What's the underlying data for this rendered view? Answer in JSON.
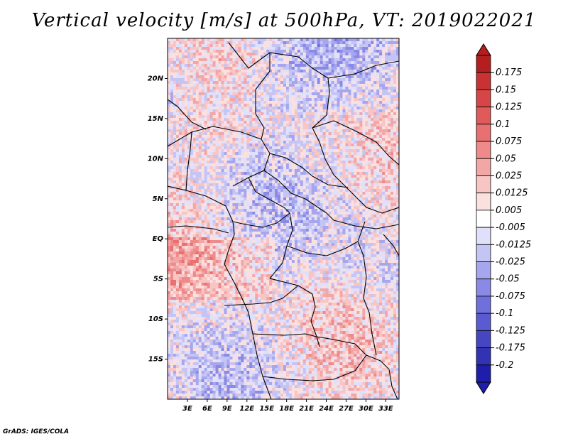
{
  "title": "Vertical velocity [m/s] at 500hPa, VT: 2019022021",
  "credit": "GrADS: IGES/COLA",
  "map": {
    "lat_labels": [
      "20N",
      "15N",
      "10N",
      "5N",
      "EQ",
      "5S",
      "10S",
      "15S"
    ],
    "lat_values": [
      20,
      15,
      10,
      5,
      0,
      -5,
      -10,
      -15
    ],
    "lon_labels": [
      "3E",
      "6E",
      "9E",
      "12E",
      "15E",
      "18E",
      "21E",
      "24E",
      "27E",
      "30E",
      "33E"
    ],
    "lon_values": [
      3,
      6,
      9,
      12,
      15,
      18,
      21,
      24,
      27,
      30,
      33
    ],
    "lon_range": [
      0,
      35
    ],
    "lat_range": [
      -20,
      25
    ]
  },
  "colorbar": {
    "labels": [
      "0.175",
      "0.15",
      "0.125",
      "0.1",
      "0.075",
      "0.05",
      "0.025",
      "0.0125",
      "0.005",
      "-0.005",
      "-0.0125",
      "-0.025",
      "-0.05",
      "-0.075",
      "-0.1",
      "-0.125",
      "-0.175",
      "-0.2"
    ],
    "colors": [
      "#b41e1e",
      "#c83232",
      "#d74646",
      "#e05a5a",
      "#e87070",
      "#ee8a8a",
      "#f3a6a6",
      "#f8c4c4",
      "#fbe0e0",
      "#ffffff",
      "#e0e0fb",
      "#c4c4f5",
      "#a6a6ee",
      "#8a8ae6",
      "#7070dd",
      "#5a5ad2",
      "#4646c3",
      "#3232b4",
      "#1e1eaa"
    ]
  }
}
